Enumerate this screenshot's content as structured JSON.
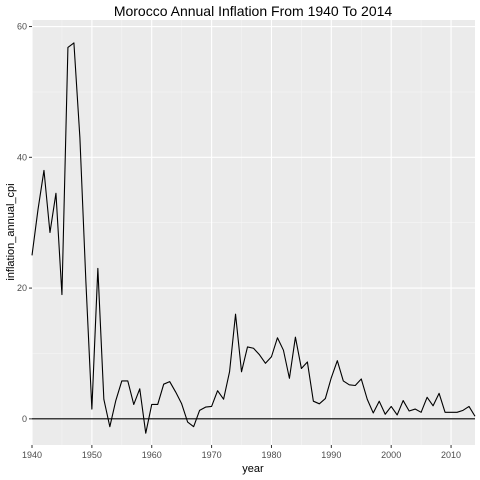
{
  "chart_data": {
    "type": "line",
    "title": "Morocco Annual Inflation From 1940 To 2014",
    "xlabel": "year",
    "ylabel": "inflation_annual_cpi",
    "xlim": [
      1940,
      2014
    ],
    "ylim": [
      -4,
      61
    ],
    "x_ticks": [
      1940,
      1950,
      1960,
      1970,
      1980,
      1990,
      2000,
      2010
    ],
    "y_ticks": [
      0,
      20,
      40,
      60
    ],
    "grid": true,
    "legend": "none",
    "reference_line": {
      "y": 0
    },
    "colors": {
      "panel": "#ebebeb",
      "grid_major": "#ffffff",
      "line": "#000000"
    },
    "series": [
      {
        "x": [
          1940,
          1941,
          1942,
          1943,
          1944,
          1945,
          1946,
          1947,
          1948,
          1949,
          1950,
          1951,
          1952,
          1953,
          1954,
          1955,
          1956,
          1957,
          1958,
          1959,
          1960,
          1961,
          1962,
          1963,
          1964,
          1965,
          1966,
          1967,
          1968,
          1969,
          1970,
          1971,
          1972,
          1973,
          1974,
          1975,
          1976,
          1977,
          1978,
          1979,
          1980,
          1981,
          1982,
          1983,
          1984,
          1985,
          1986,
          1987,
          1988,
          1989,
          1990,
          1991,
          1992,
          1993,
          1994,
          1995,
          1996,
          1997,
          1998,
          1999,
          2000,
          2001,
          2002,
          2003,
          2004,
          2005,
          2006,
          2007,
          2008,
          2009,
          2010,
          2011,
          2012,
          2013,
          2014
        ],
        "values": [
          25,
          32,
          38,
          28.5,
          34.5,
          19,
          56.8,
          57.5,
          43,
          21,
          1.5,
          23,
          3,
          -1.2,
          2.8,
          5.8,
          5.8,
          2.2,
          4.6,
          -2.2,
          2.2,
          2.2,
          5.3,
          5.7,
          4.1,
          2.3,
          -0.5,
          -1.2,
          1.3,
          1.8,
          1.9,
          4.3,
          3,
          7.2,
          16,
          7.2,
          11,
          10.8,
          9.8,
          8.5,
          9.5,
          12.4,
          10.5,
          6.2,
          12.5,
          7.7,
          8.7,
          2.7,
          2.3,
          3.1,
          6.3,
          8.9,
          5.8,
          5.2,
          5.1,
          6.1,
          3,
          0.9,
          2.7,
          0.7,
          1.9,
          0.6,
          2.8,
          1.2,
          1.5,
          1,
          3.3,
          2,
          3.9,
          1,
          1,
          1,
          1.3,
          1.9,
          0.4
        ]
      }
    ]
  }
}
